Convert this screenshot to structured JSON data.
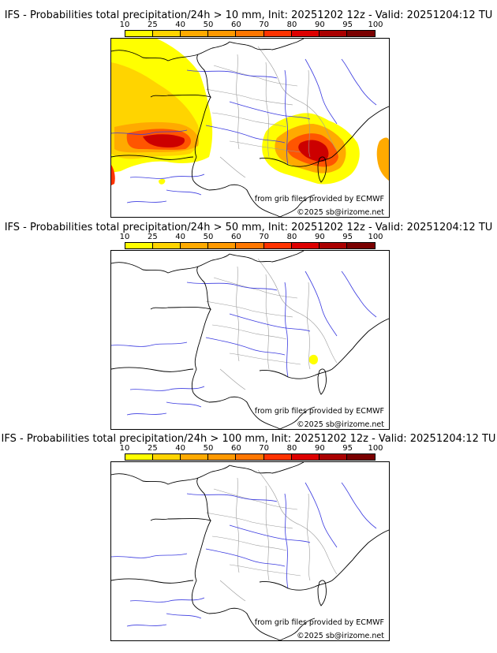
{
  "colorbar": {
    "ticks": [
      "10",
      "25",
      "40",
      "50",
      "60",
      "70",
      "80",
      "90",
      "95",
      "100"
    ],
    "colors": [
      "#ffff00",
      "#ffd400",
      "#ffaa00",
      "#ff9900",
      "#ff7700",
      "#ff3300",
      "#dd0000",
      "#aa0000",
      "#7a0000"
    ]
  },
  "panels": [
    {
      "title": "IFS - Probabilities total precipitation/24h > 10 mm, Init: 20251202 12z - Valid: 20251204:12 TU",
      "credit_source": "from grib files provided by ECMWF",
      "credit_copyright": "©2025 sb@irizome.net"
    },
    {
      "title": "IFS - Probabilities total precipitation/24h > 50 mm, Init: 20251202 12z - Valid: 20251204:12 TU",
      "credit_source": "from grib files provided by ECMWF",
      "credit_copyright": "©2025 sb@irizome.net"
    },
    {
      "title": "IFS - Probabilities total precipitation/24h > 100 mm, Init: 20251202 12z - Valid: 20251204:12 TU",
      "credit_source": "from grib files provided by ECMWF",
      "credit_copyright": "©2025 sb@irizome.net"
    }
  ]
}
